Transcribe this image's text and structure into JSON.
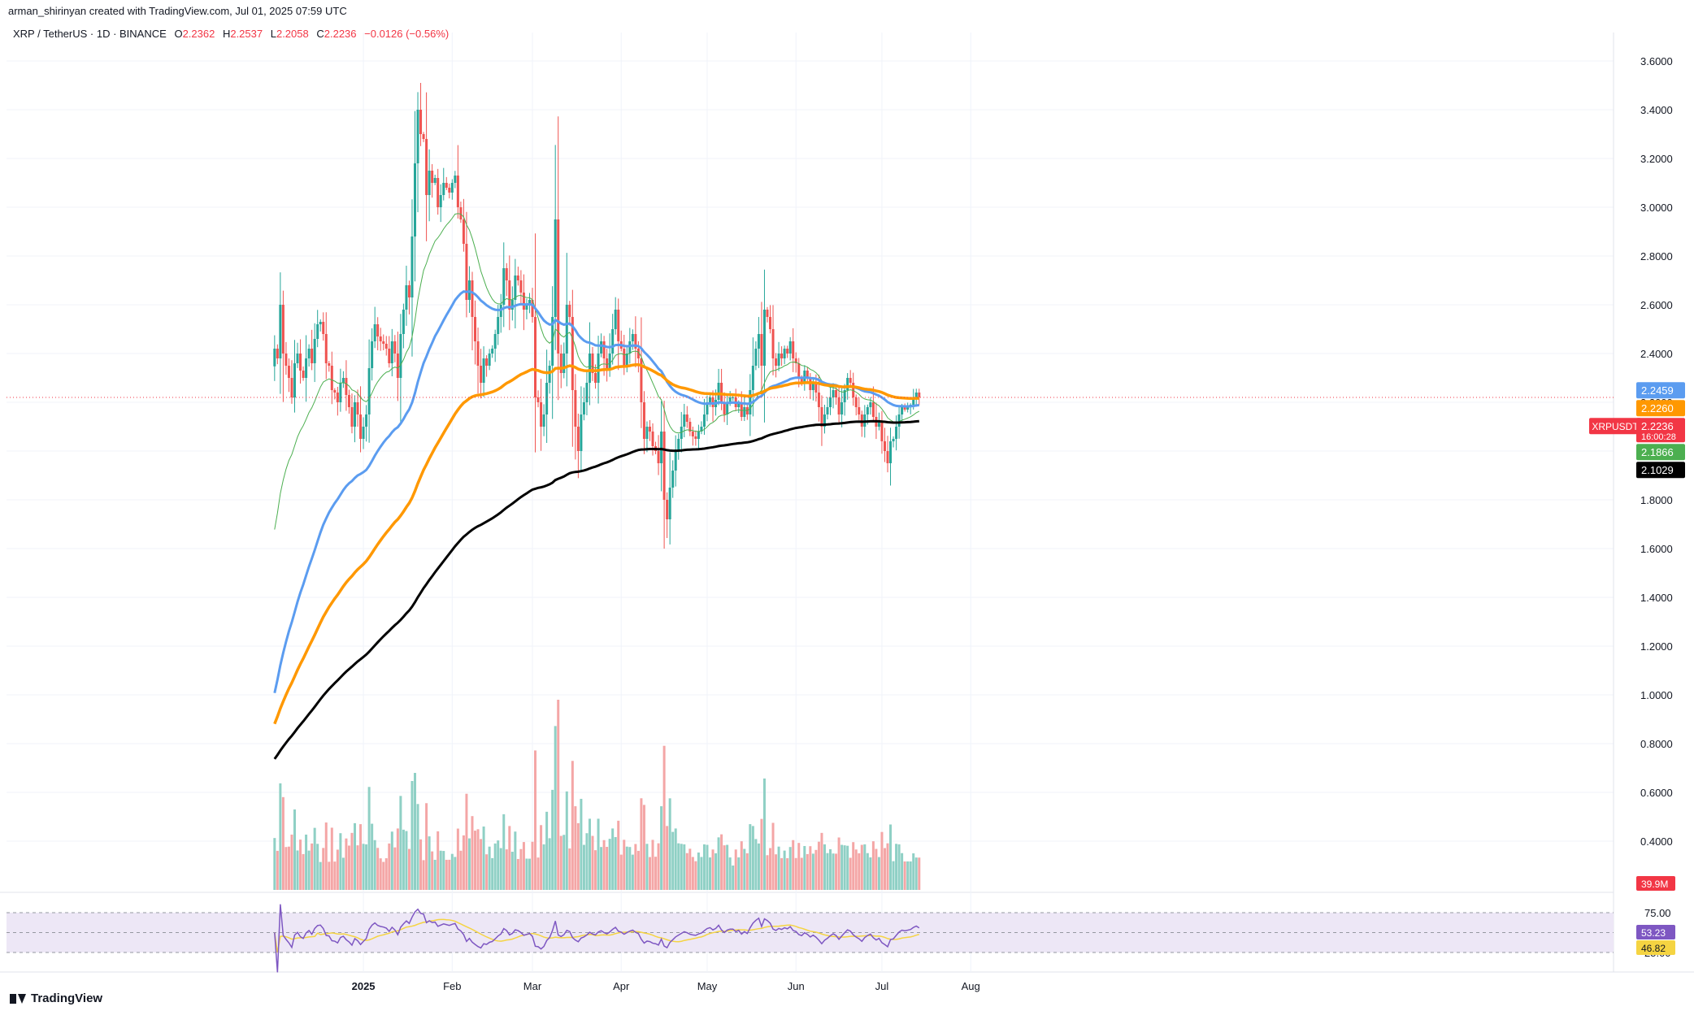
{
  "header": {
    "created_by": "arman_shirinyan created with TradingView.com, Jul 01, 2025 07:59 UTC",
    "symbol_line": "XRP / TetherUS · 1D · BINANCE",
    "ohlc": {
      "o_label": "O",
      "o": "2.2362",
      "h_label": "H",
      "h": "2.2537",
      "l_label": "L",
      "l": "2.2058",
      "c_label": "C",
      "c": "2.2236",
      "change": "−0.0126 (−0.56%)"
    }
  },
  "footer": {
    "brand": "TradingView"
  },
  "colors": {
    "up": "#26a69a",
    "down": "#ef5350",
    "vol_up": "#8fd0c5",
    "vol_down": "#f4a6a6",
    "ema20": "#4caf50",
    "ema50": "#5b9cf0",
    "ema100": "#ff9800",
    "ema200": "#000000",
    "rsi": "#7e57c2",
    "rsi_ma": "#f5d442",
    "rsi_band": "#ede7f6",
    "grid": "#f0f3fa"
  },
  "chart_data": {
    "type": "candlestick",
    "symbol": "XRPUSDT",
    "price_axis": [
      3.6,
      3.4,
      3.2,
      3.0,
      2.8,
      2.6,
      2.4,
      2.2,
      2.0,
      1.8,
      1.6,
      1.4,
      1.2,
      1.0,
      0.8,
      0.6,
      0.4
    ],
    "price_axis_labels": [
      "3.6000",
      "3.4000",
      "3.2000",
      "3.0000",
      "2.8000",
      "2.6000",
      "2.4000",
      "2.2000",
      "2.0000",
      "1.8000",
      "1.6000",
      "1.4000",
      "1.2000",
      "1.0000",
      "0.8000",
      "0.6000",
      "0.4000"
    ],
    "x_axis_labels": [
      "2025",
      "Feb",
      "Mar",
      "Apr",
      "May",
      "Jun",
      "Jul",
      "Aug"
    ],
    "x_axis_dates": [
      "2025-01-01",
      "2025-02-01",
      "2025-03-01",
      "2025-04-01",
      "2025-05-01",
      "2025-06-01",
      "2025-07-01",
      "2025-08-01"
    ],
    "first_bar_date": "2024-12-01",
    "last_bar_date": "2025-07-01",
    "closes": [
      2.42,
      2.38,
      2.6,
      2.4,
      2.35,
      2.3,
      2.22,
      2.36,
      2.4,
      2.33,
      2.3,
      2.38,
      2.42,
      2.36,
      2.46,
      2.52,
      2.53,
      2.48,
      2.36,
      2.35,
      2.25,
      2.24,
      2.2,
      2.28,
      2.3,
      2.23,
      2.18,
      2.1,
      2.2,
      2.15,
      2.05,
      2.1,
      2.15,
      2.34,
      2.45,
      2.52,
      2.47,
      2.45,
      2.44,
      2.42,
      2.36,
      2.45,
      2.4,
      2.3,
      2.48,
      2.58,
      2.68,
      2.63,
      2.88,
      3.18,
      3.4,
      3.3,
      3.28,
      3.05,
      3.15,
      3.1,
      3.12,
      3.0,
      3.05,
      3.1,
      3.08,
      3.06,
      3.1,
      3.13,
      3.0,
      2.95,
      2.85,
      2.62,
      2.7,
      2.55,
      2.45,
      2.35,
      2.28,
      2.38,
      2.35,
      2.4,
      2.42,
      2.48,
      2.55,
      2.6,
      2.75,
      2.7,
      2.58,
      2.62,
      2.72,
      2.7,
      2.65,
      2.58,
      2.6,
      2.62,
      2.55,
      2.22,
      2.2,
      2.1,
      2.15,
      2.28,
      2.35,
      2.55,
      2.95,
      2.4,
      2.32,
      2.4,
      2.6,
      2.55,
      2.25,
      2.1,
      2.0,
      2.15,
      2.2,
      2.28,
      2.4,
      2.32,
      2.28,
      2.4,
      2.45,
      2.38,
      2.33,
      2.4,
      2.5,
      2.58,
      2.45,
      2.42,
      2.35,
      2.4,
      2.45,
      2.48,
      2.42,
      2.38,
      2.2,
      2.05,
      2.1,
      2.08,
      2.02,
      2.0,
      1.95,
      2.08,
      1.8,
      1.72,
      1.85,
      1.92,
      2.0,
      2.05,
      2.1,
      2.15,
      2.12,
      2.08,
      2.06,
      2.05,
      2.08,
      2.1,
      2.15,
      2.2,
      2.22,
      2.18,
      2.21,
      2.28,
      2.2,
      2.15,
      2.2,
      2.22,
      2.22,
      2.18,
      2.2,
      2.14,
      2.18,
      2.15,
      2.25,
      2.35,
      2.42,
      2.48,
      2.35,
      2.58,
      2.55,
      2.5,
      2.38,
      2.35,
      2.4,
      2.38,
      2.42,
      2.4,
      2.45,
      2.38,
      2.36,
      2.3,
      2.28,
      2.33,
      2.3,
      2.25,
      2.28,
      2.24,
      2.18,
      2.1,
      2.15,
      2.18,
      2.22,
      2.25,
      2.22,
      2.15,
      2.2,
      2.25,
      2.3,
      2.28,
      2.22,
      2.18,
      2.15,
      2.1,
      2.15,
      2.18,
      2.2,
      2.14,
      2.1,
      2.12,
      2.04,
      2.0,
      1.95,
      2.04,
      2.05,
      2.1,
      2.15,
      2.18,
      2.17,
      2.18,
      2.19,
      2.22,
      2.24,
      2.22
    ],
    "volume_unit": "M",
    "last_volume": "39.9M",
    "ema_last": {
      "ema50": 2.2459,
      "ema100": 2.226,
      "ema20": 2.1866,
      "ema200": 2.1029
    },
    "price_tags": [
      {
        "text": "2.2459",
        "color": "#5b9cf0"
      },
      {
        "text": "2.2260",
        "color": "#ff9800"
      },
      {
        "symbol": "XRPUSDT",
        "text": "2.2236",
        "sub": "16:00:28",
        "color": "#f23645"
      },
      {
        "text": "2.1866",
        "color": "#4caf50"
      },
      {
        "text": "2.1029",
        "color": "#000000"
      }
    ],
    "rsi": {
      "upper_label": "75.00",
      "lower_label": "25.00",
      "value": "53.23",
      "ma_value": "46.82",
      "upper": 75,
      "lower": 25
    }
  }
}
